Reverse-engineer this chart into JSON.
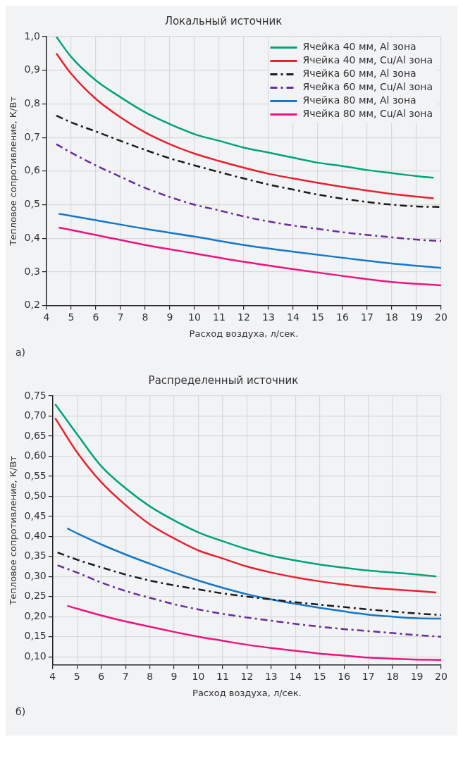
{
  "chart_data": [
    {
      "type": "line",
      "title": "Локальный источник",
      "xlabel": "Расход воздуха, л/сек.",
      "ylabel": "Тепловое сопротивление, К/Вт",
      "xlim": [
        4,
        20
      ],
      "xticks": [
        4,
        5,
        6,
        7,
        8,
        9,
        10,
        11,
        12,
        13,
        14,
        15,
        16,
        17,
        18,
        19,
        20
      ],
      "ylim": [
        0.2,
        1.0
      ],
      "yticks": [
        {
          "value": 0.2,
          "label": "0,2"
        },
        {
          "value": 0.3,
          "label": "0,3"
        },
        {
          "value": 0.4,
          "label": "0,4"
        },
        {
          "value": 0.5,
          "label": "0,5"
        },
        {
          "value": 0.6,
          "label": "0,6"
        },
        {
          "value": 0.7,
          "label": "0,7"
        },
        {
          "value": 0.8,
          "label": "0,8"
        },
        {
          "value": 0.9,
          "label": "0,9"
        },
        {
          "value": 1.0,
          "label": "1,0"
        }
      ],
      "grid": true,
      "legend": "top right",
      "marker": "none",
      "annotations": [
        "а)"
      ],
      "series": [
        {
          "name": "Ячейка 40 мм, Al зона",
          "color": "#00a37a",
          "line_style": "solid",
          "x": [
            4.4,
            5,
            6,
            7,
            8,
            9,
            10,
            11,
            12,
            13,
            14,
            15,
            16,
            17,
            18,
            19,
            19.7
          ],
          "values": [
            1.0,
            0.94,
            0.87,
            0.82,
            0.775,
            0.74,
            0.71,
            0.69,
            0.67,
            0.655,
            0.64,
            0.625,
            0.615,
            0.603,
            0.594,
            0.585,
            0.58
          ]
        },
        {
          "name": "Ячейка 40 мм, Cu/Al зона",
          "color": "#e8202f",
          "line_style": "solid",
          "x": [
            4.4,
            5,
            6,
            7,
            8,
            9,
            10,
            11,
            12,
            13,
            14,
            15,
            16,
            17,
            18,
            19,
            19.7
          ],
          "values": [
            0.95,
            0.89,
            0.815,
            0.76,
            0.715,
            0.68,
            0.652,
            0.63,
            0.61,
            0.592,
            0.578,
            0.565,
            0.553,
            0.542,
            0.532,
            0.524,
            0.519
          ]
        },
        {
          "name": "Ячейка 60 мм, Al зона",
          "color": "#1a1a1a",
          "line_style": "dashed",
          "x": [
            4.4,
            5,
            6,
            7,
            8,
            9,
            10,
            11,
            12,
            13,
            14,
            15,
            16,
            17,
            18,
            19,
            20
          ],
          "values": [
            0.765,
            0.745,
            0.718,
            0.69,
            0.663,
            0.638,
            0.617,
            0.597,
            0.578,
            0.56,
            0.545,
            0.53,
            0.518,
            0.508,
            0.5,
            0.495,
            0.493
          ]
        },
        {
          "name": "Ячейка 60 мм, Cu/Al зона",
          "color": "#6a2c9a",
          "line_style": "dashed",
          "x": [
            4.4,
            5,
            6,
            7,
            8,
            9,
            10,
            11,
            12,
            13,
            14,
            15,
            16,
            17,
            18,
            19,
            20
          ],
          "values": [
            0.68,
            0.655,
            0.617,
            0.583,
            0.55,
            0.523,
            0.5,
            0.483,
            0.465,
            0.45,
            0.438,
            0.428,
            0.418,
            0.41,
            0.403,
            0.396,
            0.392
          ]
        },
        {
          "name": "Ячейка 80 мм, Al зона",
          "color": "#1477c8",
          "line_style": "solid",
          "x": [
            4.5,
            6,
            8,
            10,
            12,
            14,
            16,
            18,
            20
          ],
          "values": [
            0.473,
            0.454,
            0.428,
            0.405,
            0.38,
            0.36,
            0.342,
            0.325,
            0.312
          ]
        },
        {
          "name": "Ячейка 80 мм, Cu/Al зона",
          "color": "#ee1380",
          "line_style": "solid",
          "x": [
            4.5,
            6,
            8,
            10,
            12,
            14,
            16,
            18,
            20
          ],
          "values": [
            0.432,
            0.41,
            0.38,
            0.355,
            0.33,
            0.308,
            0.288,
            0.27,
            0.26
          ]
        }
      ]
    },
    {
      "type": "line",
      "title": "Распределенный источник",
      "xlabel": "Расход воздуха, л/сек.",
      "ylabel": "Тепловое сопротивление, К/Вт",
      "xlim": [
        4,
        20
      ],
      "xticks": [
        4,
        5,
        6,
        7,
        8,
        9,
        10,
        11,
        12,
        13,
        14,
        15,
        16,
        17,
        18,
        19,
        20
      ],
      "ylim": [
        0.08,
        0.75
      ],
      "yticks": [
        {
          "value": 0.1,
          "label": "0,10"
        },
        {
          "value": 0.15,
          "label": "0,15"
        },
        {
          "value": 0.2,
          "label": "0,20"
        },
        {
          "value": 0.25,
          "label": "0,25"
        },
        {
          "value": 0.3,
          "label": "0,30"
        },
        {
          "value": 0.35,
          "label": "0,35"
        },
        {
          "value": 0.4,
          "label": "0,40"
        },
        {
          "value": 0.45,
          "label": "0,45"
        },
        {
          "value": 0.5,
          "label": "0,50"
        },
        {
          "value": 0.55,
          "label": "0,55"
        },
        {
          "value": 0.6,
          "label": "0,60"
        },
        {
          "value": 0.65,
          "label": "0,65"
        },
        {
          "value": 0.7,
          "label": "0,70"
        },
        {
          "value": 0.75,
          "label": "0,75"
        }
      ],
      "grid": true,
      "marker": "none",
      "annotations": [
        "б)"
      ],
      "series": [
        {
          "color": "#00a37a",
          "line_style": "solid",
          "x": [
            4.1,
            5,
            6,
            7,
            8,
            9,
            10,
            11,
            12,
            13,
            14,
            15,
            16,
            17,
            18,
            19,
            19.8
          ],
          "values": [
            0.73,
            0.655,
            0.575,
            0.52,
            0.475,
            0.44,
            0.41,
            0.388,
            0.368,
            0.352,
            0.34,
            0.33,
            0.322,
            0.315,
            0.31,
            0.305,
            0.3
          ]
        },
        {
          "color": "#e8202f",
          "line_style": "solid",
          "x": [
            4.1,
            5,
            6,
            7,
            8,
            9,
            10,
            11,
            12,
            13,
            14,
            15,
            16,
            17,
            18,
            19,
            19.8
          ],
          "values": [
            0.695,
            0.61,
            0.535,
            0.478,
            0.43,
            0.395,
            0.365,
            0.345,
            0.325,
            0.31,
            0.298,
            0.288,
            0.28,
            0.273,
            0.268,
            0.264,
            0.26
          ]
        },
        {
          "color": "#1a1a1a",
          "line_style": "dashed",
          "x": [
            4.2,
            5,
            6,
            7,
            8,
            9,
            10,
            11,
            12,
            13,
            14,
            15,
            16,
            17,
            18,
            19,
            20
          ],
          "values": [
            0.36,
            0.342,
            0.323,
            0.305,
            0.29,
            0.278,
            0.268,
            0.258,
            0.25,
            0.243,
            0.236,
            0.23,
            0.224,
            0.218,
            0.213,
            0.208,
            0.204
          ]
        },
        {
          "color": "#6a2c9a",
          "line_style": "dashed",
          "x": [
            4.2,
            5,
            6,
            7,
            8,
            9,
            10,
            11,
            12,
            13,
            14,
            15,
            16,
            17,
            18,
            19,
            20
          ],
          "values": [
            0.328,
            0.31,
            0.285,
            0.264,
            0.247,
            0.231,
            0.218,
            0.207,
            0.198,
            0.19,
            0.182,
            0.175,
            0.169,
            0.164,
            0.159,
            0.154,
            0.15
          ]
        },
        {
          "color": "#1477c8",
          "line_style": "solid",
          "x": [
            4.6,
            5,
            6,
            7,
            8,
            9,
            10,
            11,
            12,
            13,
            14,
            15,
            16,
            17,
            18,
            19,
            20
          ],
          "values": [
            0.42,
            0.408,
            0.38,
            0.355,
            0.332,
            0.31,
            0.29,
            0.272,
            0.256,
            0.243,
            0.232,
            0.222,
            0.213,
            0.205,
            0.2,
            0.196,
            0.195
          ]
        },
        {
          "color": "#ee1380",
          "line_style": "solid",
          "x": [
            4.6,
            6,
            7,
            8,
            9,
            10,
            11,
            12,
            13,
            14,
            15,
            16,
            17,
            18,
            19,
            20
          ],
          "values": [
            0.227,
            0.203,
            0.188,
            0.175,
            0.162,
            0.15,
            0.14,
            0.13,
            0.122,
            0.115,
            0.108,
            0.103,
            0.098,
            0.095,
            0.093,
            0.092
          ]
        }
      ]
    }
  ]
}
